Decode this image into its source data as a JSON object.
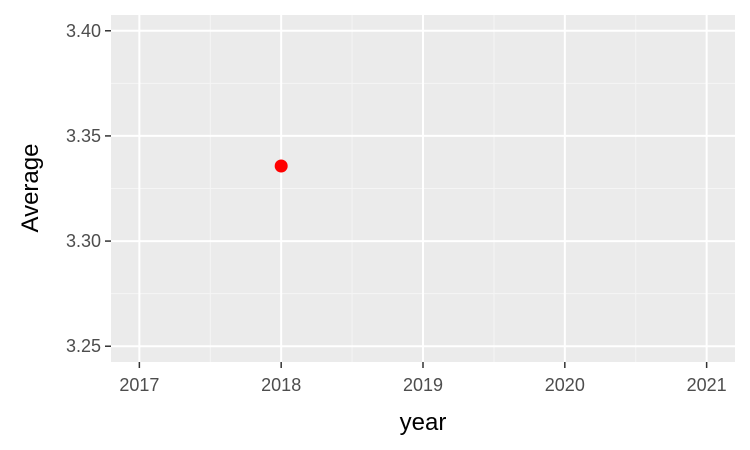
{
  "chart_data": {
    "type": "scatter",
    "title": "",
    "xlabel": "year",
    "ylabel": "Average",
    "x_ticks": [
      "2017",
      "2018",
      "2019",
      "2020",
      "2021"
    ],
    "y_ticks": [
      "3.25",
      "3.30",
      "3.35",
      "3.40"
    ],
    "xlim": [
      2016.8,
      2021.2
    ],
    "ylim": [
      3.2425,
      3.4075
    ],
    "grid": true,
    "legend": "none",
    "points": [
      {
        "x": 2018,
        "y": 3.3357
      }
    ],
    "colors": {
      "panel_background": "#ebebeb",
      "grid_major": "#ffffff",
      "grid_minor": "#f5f5f5",
      "point": "#ff0000",
      "tick_mark": "#333333"
    }
  }
}
